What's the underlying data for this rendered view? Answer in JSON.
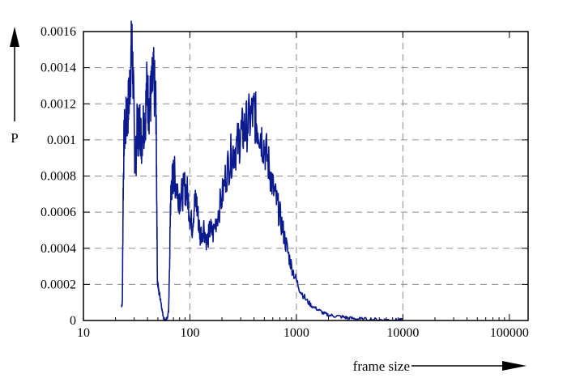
{
  "chart_data": {
    "type": "line",
    "xlabel": "frame size",
    "ylabel": "P",
    "xscale": "log",
    "xlim": [
      10,
      150000
    ],
    "ylim": [
      0,
      0.0016
    ],
    "x_ticks": [
      10,
      100,
      1000,
      10000,
      100000
    ],
    "x_tick_labels": [
      "10",
      "100",
      "1000",
      "10000",
      "100000"
    ],
    "y_ticks": [
      0,
      0.0002,
      0.0004,
      0.0006,
      0.0008,
      0.001,
      0.0012,
      0.0014,
      0.0016
    ],
    "y_tick_labels": [
      "0",
      "0.0002",
      "0.0004",
      "0.0006",
      "0.0008",
      "0.001",
      "0.0012",
      "0.0014",
      "0.0016"
    ],
    "grid": true,
    "line_color": "#0b1a8c",
    "grid_color": "#8c8c8c",
    "series": [
      {
        "points": [
          [
            22.8,
            8e-05
          ],
          [
            23.2,
            0.0001
          ],
          [
            23.6,
            0.0007
          ],
          [
            24.1,
            0.00102
          ],
          [
            25.0,
            0.00108
          ],
          [
            26.0,
            0.00115
          ],
          [
            27.0,
            0.00125
          ],
          [
            27.8,
            0.00142
          ],
          [
            28.5,
            0.00152
          ],
          [
            29.3,
            0.00135
          ],
          [
            30.2,
            0.00095
          ],
          [
            31.0,
            0.00088
          ],
          [
            32.0,
            0.00108
          ],
          [
            33.0,
            0.00105
          ],
          [
            34.0,
            0.0011
          ],
          [
            35.0,
            0.00098
          ],
          [
            36.5,
            0.0011
          ],
          [
            38.0,
            0.00112
          ],
          [
            39.5,
            0.0013
          ],
          [
            41.0,
            0.00118
          ],
          [
            42.5,
            0.00122
          ],
          [
            44.0,
            0.00128
          ],
          [
            45.5,
            0.00134
          ],
          [
            47.0,
            0.00125
          ],
          [
            48.0,
            0.00118
          ],
          [
            48.8,
            0.0007
          ],
          [
            49.5,
            0.00022
          ],
          [
            51.0,
            0.00016
          ],
          [
            53.0,
            0.00012
          ],
          [
            55.0,
            5e-05
          ],
          [
            57.0,
            1e-05
          ],
          [
            59.0,
            0.0
          ],
          [
            61.0,
            1e-05
          ],
          [
            63.0,
            5e-05
          ],
          [
            64.5,
            0.0003
          ],
          [
            65.5,
            0.00062
          ],
          [
            67.0,
            0.00075
          ],
          [
            69.0,
            0.00078
          ],
          [
            71.0,
            0.00082
          ],
          [
            73.0,
            0.00077
          ],
          [
            76.0,
            0.00073
          ],
          [
            80.0,
            0.00068
          ],
          [
            85.0,
            0.0007
          ],
          [
            90.0,
            0.00074
          ],
          [
            95.0,
            0.0007
          ],
          [
            100.0,
            0.00058
          ],
          [
            105.0,
            0.00052
          ],
          [
            110.0,
            0.00064
          ],
          [
            115.0,
            0.00066
          ],
          [
            120.0,
            0.00056
          ],
          [
            125.0,
            0.00047
          ],
          [
            135.0,
            0.00052
          ],
          [
            145.0,
            0.00043
          ],
          [
            155.0,
            0.00051
          ],
          [
            165.0,
            0.00048
          ],
          [
            180.0,
            0.00058
          ],
          [
            200.0,
            0.00068
          ],
          [
            220.0,
            0.00082
          ],
          [
            240.0,
            0.0009
          ],
          [
            260.0,
            0.00095
          ],
          [
            280.0,
            0.00097
          ],
          [
            300.0,
            0.00103
          ],
          [
            320.0,
            0.00105
          ],
          [
            340.0,
            0.00108
          ],
          [
            370.0,
            0.00112
          ],
          [
            400.0,
            0.00115
          ],
          [
            420.0,
            0.0011
          ],
          [
            450.0,
            0.00106
          ],
          [
            480.0,
            0.001
          ],
          [
            520.0,
            0.00093
          ],
          [
            560.0,
            0.00084
          ],
          [
            600.0,
            0.00074
          ],
          [
            650.0,
            0.00066
          ],
          [
            700.0,
            0.00058
          ],
          [
            760.0,
            0.00048
          ],
          [
            830.0,
            0.00038
          ],
          [
            900.0,
            0.0003
          ],
          [
            1000.0,
            0.00022
          ],
          [
            1100.0,
            0.00016
          ],
          [
            1250.0,
            0.00011
          ],
          [
            1400.0,
            8e-05
          ],
          [
            1600.0,
            6e-05
          ],
          [
            1800.0,
            4e-05
          ],
          [
            2000.0,
            3e-05
          ],
          [
            2300.0,
            2.5e-05
          ],
          [
            2700.0,
            2e-05
          ],
          [
            3000.0,
            1.5e-05
          ],
          [
            3500.0,
            1e-05
          ],
          [
            4000.0,
            8e-06
          ],
          [
            5000.0,
            6e-06
          ],
          [
            6000.0,
            4e-06
          ],
          [
            7000.0,
            3e-06
          ],
          [
            8000.0,
            2e-06
          ],
          [
            9000.0,
            1.5e-06
          ],
          [
            10000.0,
            1e-06
          ]
        ]
      }
    ]
  }
}
